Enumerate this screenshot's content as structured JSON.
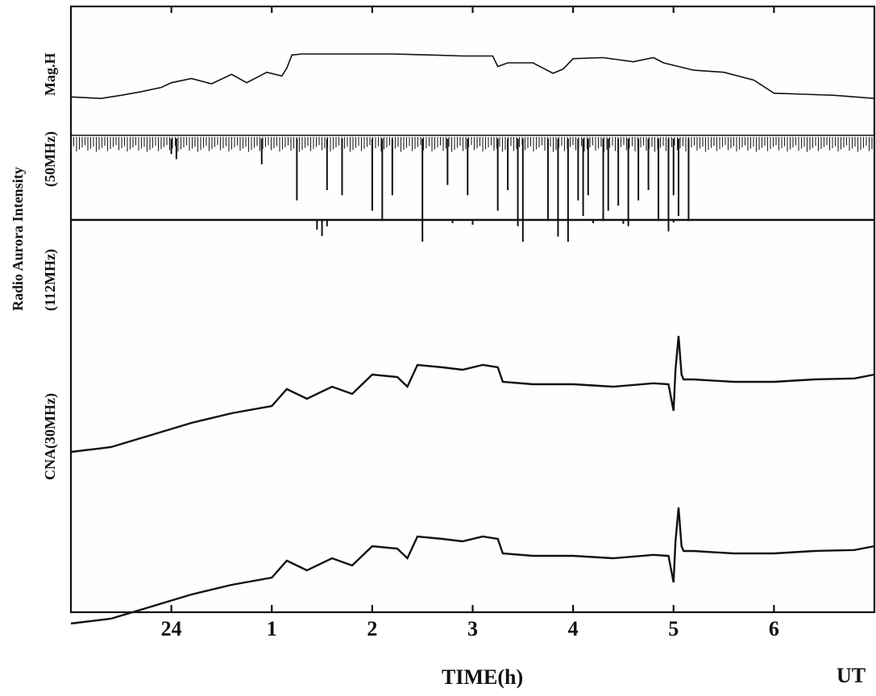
{
  "chart_data": {
    "type": "line",
    "xlabel": "TIME(h)",
    "x_unit": "UT",
    "x_ticks": [
      "24",
      "1",
      "2",
      "3",
      "4",
      "5",
      "6"
    ],
    "xlim": [
      "23:00",
      "7:00"
    ],
    "ylabels": {
      "outer": "Radio Aurora Intensity",
      "mag": "Mag.H",
      "r50": "(50MHz)",
      "r112": "(112MHz)",
      "cna": "CNA(30MHz)"
    },
    "series": [
      {
        "name": "Mag.H",
        "x": [
          23.0,
          23.3,
          23.5,
          23.7,
          23.9,
          24.0,
          24.2,
          24.4,
          24.6,
          24.75,
          24.95,
          25.1,
          25.15,
          25.2,
          25.3,
          25.8,
          26.2,
          26.6,
          26.9,
          27.2,
          27.25,
          27.35,
          27.6,
          27.8,
          27.9,
          28.0,
          28.3,
          28.6,
          28.8,
          28.9,
          29.2,
          29.5,
          29.8,
          30.0,
          30.3,
          30.6,
          31.0
        ],
        "values": [
          0.15,
          0.12,
          0.18,
          0.25,
          0.33,
          0.42,
          0.5,
          0.4,
          0.58,
          0.42,
          0.62,
          0.55,
          0.7,
          0.95,
          0.97,
          0.97,
          0.97,
          0.95,
          0.93,
          0.93,
          0.73,
          0.8,
          0.8,
          0.6,
          0.68,
          0.88,
          0.9,
          0.82,
          0.9,
          0.8,
          0.66,
          0.62,
          0.47,
          0.22,
          0.2,
          0.18,
          0.12
        ]
      },
      {
        "name": "(50MHz)",
        "x": [
          24.0,
          24.05,
          24.9,
          25.25,
          25.55,
          25.7,
          26.0,
          26.1,
          26.2,
          26.5,
          26.75,
          26.95,
          27.25,
          27.35,
          27.45,
          27.5,
          27.75,
          27.85,
          27.95,
          28.05,
          28.1,
          28.15,
          28.3,
          28.35,
          28.45,
          28.55,
          28.65,
          28.75,
          28.85,
          28.95,
          29.0,
          29.05,
          29.15
        ],
        "values": [
          0.15,
          0.2,
          0.25,
          0.6,
          0.5,
          0.55,
          0.7,
          0.8,
          0.55,
          1.0,
          0.45,
          0.55,
          0.7,
          0.5,
          0.85,
          1.0,
          0.8,
          0.95,
          1.0,
          0.6,
          0.75,
          0.55,
          0.8,
          0.7,
          0.65,
          0.85,
          0.6,
          0.5,
          0.8,
          0.9,
          0.55,
          0.75,
          0.8
        ]
      },
      {
        "name": "(112MHz)",
        "x": [
          25.45,
          25.5,
          25.55,
          26.8,
          27.0,
          28.2,
          28.5,
          29.0
        ],
        "values": [
          0.3,
          0.5,
          0.2,
          0.1,
          0.15,
          0.1,
          0.12,
          0.08
        ]
      },
      {
        "name": "CNA(30MHz)",
        "x": [
          23.0,
          23.4,
          23.8,
          24.2,
          24.6,
          25.0,
          25.15,
          25.35,
          25.6,
          25.8,
          26.0,
          26.25,
          26.35,
          26.45,
          26.7,
          26.9,
          27.1,
          27.25,
          27.3,
          27.6,
          28.0,
          28.4,
          28.8,
          28.95,
          29.0,
          29.02,
          29.05,
          29.08,
          29.1,
          29.2,
          29.6,
          30.0,
          30.4,
          30.8,
          31.0
        ],
        "values": [
          -0.2,
          -0.3,
          -0.55,
          -0.8,
          -1.0,
          -1.15,
          -1.5,
          -1.3,
          -1.55,
          -1.4,
          -1.8,
          -1.75,
          -1.55,
          -2.0,
          -1.95,
          -1.9,
          -2.0,
          -1.95,
          -1.65,
          -1.6,
          -1.6,
          -1.55,
          -1.62,
          -1.6,
          -1.05,
          -1.9,
          -2.6,
          -1.8,
          -1.7,
          -1.7,
          -1.65,
          -1.65,
          -1.7,
          -1.72,
          -1.8
        ]
      }
    ],
    "grid": false,
    "legend": "none"
  }
}
